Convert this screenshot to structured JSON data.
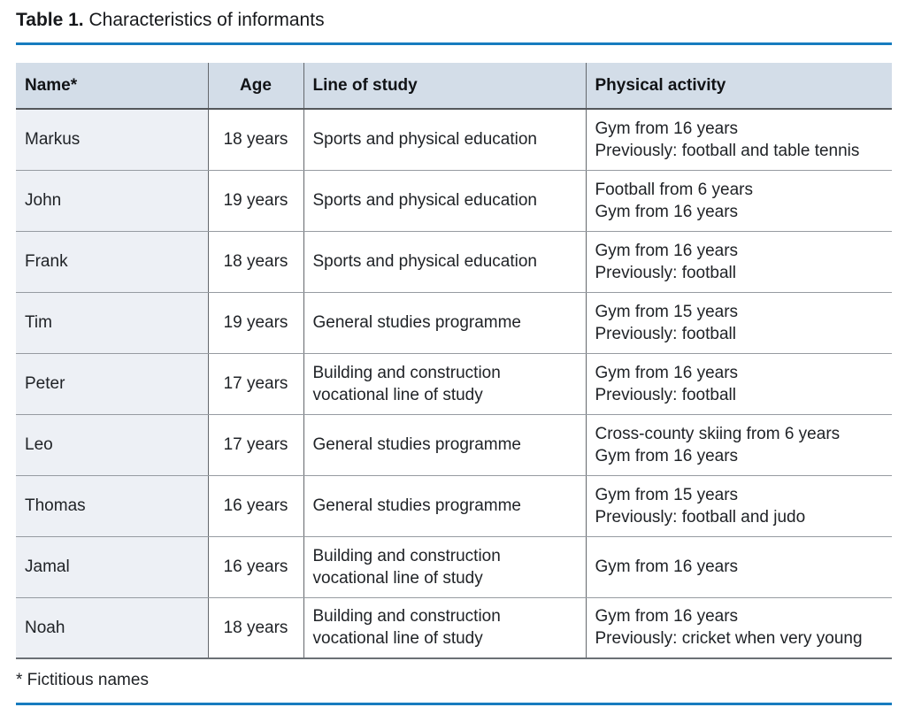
{
  "title": {
    "prefix": "Table 1.",
    "text": " Characteristics of informants"
  },
  "table": {
    "columns": [
      "Name*",
      "Age",
      "Line of study",
      "Physical activity"
    ],
    "rows": [
      {
        "name": "Markus",
        "age": "18 years",
        "study": "Sports and physical education",
        "activity": [
          "Gym from 16 years",
          "Previously: football and table tennis"
        ]
      },
      {
        "name": "John",
        "age": "19 years",
        "study": "Sports and physical education",
        "activity": [
          "Football from 6 years",
          "Gym from 16 years"
        ]
      },
      {
        "name": "Frank",
        "age": "18 years",
        "study": "Sports and physical education",
        "activity": [
          "Gym from 16 years",
          "Previously: football"
        ]
      },
      {
        "name": "Tim",
        "age": "19 years",
        "study": "General studies programme",
        "activity": [
          "Gym from 15 years",
          "Previously: football"
        ]
      },
      {
        "name": "Peter",
        "age": "17 years",
        "study": "Building and construction vocational line of study",
        "activity": [
          "Gym from 16 years",
          "Previously: football"
        ]
      },
      {
        "name": "Leo",
        "age": "17 years",
        "study": "General studies programme",
        "activity": [
          "Cross-county skiing from 6 years",
          "Gym from 16 years"
        ]
      },
      {
        "name": "Thomas",
        "age": "16 years",
        "study": "General studies programme",
        "activity": [
          "Gym from 15 years",
          "Previously: football and judo"
        ]
      },
      {
        "name": "Jamal",
        "age": "16 years",
        "study": "Building and construction vocational line of study",
        "activity": [
          "Gym from 16 years"
        ]
      },
      {
        "name": "Noah",
        "age": "18 years",
        "study": "Building and construction vocational line of study",
        "activity": [
          "Gym from 16 years",
          "Previously: cricket when very young"
        ]
      }
    ]
  },
  "footnote": "* Fictitious names",
  "colors": {
    "accent_rule": "#177cbf",
    "header_bg": "#d3dde8",
    "name_column_bg": "#edf0f5",
    "border_dark": "#64686d",
    "border_light": "#969ba1",
    "text": "#1c1e21"
  }
}
